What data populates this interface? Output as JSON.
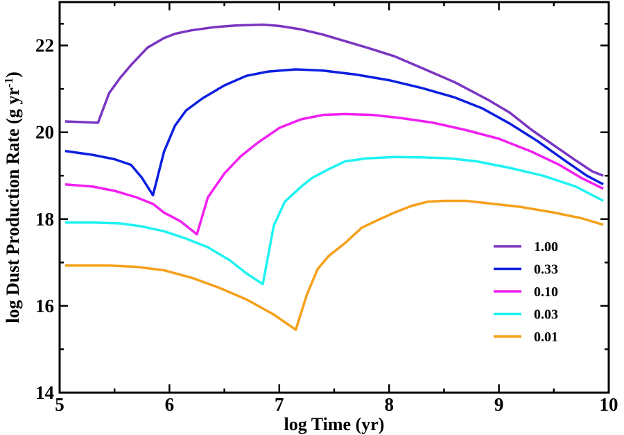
{
  "chart_data": {
    "type": "line",
    "xlabel": "log Time (yr)",
    "ylabel": {
      "main": "log Dust Production Rate (g yr",
      "sup": "-1",
      "tail": ")"
    },
    "xlim": [
      5,
      10
    ],
    "ylim": [
      14,
      23
    ],
    "xticks": [
      5,
      6,
      7,
      8,
      9,
      10
    ],
    "yticks": [
      14,
      16,
      18,
      20,
      22
    ],
    "legend_position": "lower-right",
    "grid": false,
    "series": [
      {
        "name": "1.00",
        "color": "#7a35c2",
        "points": [
          [
            5.05,
            20.25
          ],
          [
            5.35,
            20.22
          ],
          [
            5.45,
            20.9
          ],
          [
            5.55,
            21.25
          ],
          [
            5.65,
            21.55
          ],
          [
            5.8,
            21.95
          ],
          [
            5.95,
            22.17
          ],
          [
            6.05,
            22.27
          ],
          [
            6.2,
            22.35
          ],
          [
            6.4,
            22.42
          ],
          [
            6.6,
            22.46
          ],
          [
            6.85,
            22.48
          ],
          [
            7.0,
            22.45
          ],
          [
            7.2,
            22.37
          ],
          [
            7.4,
            22.25
          ],
          [
            7.6,
            22.1
          ],
          [
            7.8,
            21.95
          ],
          [
            8.05,
            21.75
          ],
          [
            8.3,
            21.48
          ],
          [
            8.6,
            21.15
          ],
          [
            8.9,
            20.75
          ],
          [
            9.1,
            20.45
          ],
          [
            9.3,
            20.05
          ],
          [
            9.5,
            19.7
          ],
          [
            9.7,
            19.35
          ],
          [
            9.85,
            19.1
          ],
          [
            9.95,
            19.0
          ]
        ]
      },
      {
        "name": "0.33",
        "color": "#0d1fe0",
        "points": [
          [
            5.05,
            19.57
          ],
          [
            5.3,
            19.48
          ],
          [
            5.5,
            19.38
          ],
          [
            5.65,
            19.25
          ],
          [
            5.75,
            18.95
          ],
          [
            5.85,
            18.55
          ],
          [
            5.95,
            19.55
          ],
          [
            6.05,
            20.15
          ],
          [
            6.15,
            20.5
          ],
          [
            6.3,
            20.78
          ],
          [
            6.5,
            21.08
          ],
          [
            6.7,
            21.3
          ],
          [
            6.9,
            21.4
          ],
          [
            7.15,
            21.45
          ],
          [
            7.4,
            21.42
          ],
          [
            7.7,
            21.33
          ],
          [
            8.0,
            21.2
          ],
          [
            8.3,
            21.02
          ],
          [
            8.6,
            20.8
          ],
          [
            8.85,
            20.55
          ],
          [
            9.1,
            20.2
          ],
          [
            9.35,
            19.8
          ],
          [
            9.6,
            19.35
          ],
          [
            9.8,
            19.0
          ],
          [
            9.95,
            18.8
          ]
        ]
      },
      {
        "name": "0.10",
        "color": "#f21ff2",
        "points": [
          [
            5.05,
            18.8
          ],
          [
            5.3,
            18.75
          ],
          [
            5.5,
            18.65
          ],
          [
            5.7,
            18.5
          ],
          [
            5.85,
            18.35
          ],
          [
            5.95,
            18.15
          ],
          [
            6.1,
            17.95
          ],
          [
            6.25,
            17.65
          ],
          [
            6.35,
            18.5
          ],
          [
            6.5,
            19.05
          ],
          [
            6.65,
            19.45
          ],
          [
            6.8,
            19.75
          ],
          [
            7.0,
            20.1
          ],
          [
            7.2,
            20.3
          ],
          [
            7.4,
            20.4
          ],
          [
            7.6,
            20.42
          ],
          [
            7.85,
            20.4
          ],
          [
            8.1,
            20.33
          ],
          [
            8.4,
            20.22
          ],
          [
            8.7,
            20.05
          ],
          [
            9.0,
            19.85
          ],
          [
            9.3,
            19.55
          ],
          [
            9.55,
            19.25
          ],
          [
            9.75,
            18.95
          ],
          [
            9.95,
            18.7
          ]
        ]
      },
      {
        "name": "0.03",
        "color": "#1ff2f2",
        "points": [
          [
            5.05,
            17.92
          ],
          [
            5.3,
            17.92
          ],
          [
            5.55,
            17.9
          ],
          [
            5.75,
            17.83
          ],
          [
            5.95,
            17.72
          ],
          [
            6.15,
            17.55
          ],
          [
            6.35,
            17.35
          ],
          [
            6.55,
            17.05
          ],
          [
            6.7,
            16.75
          ],
          [
            6.85,
            16.5
          ],
          [
            6.95,
            17.85
          ],
          [
            7.05,
            18.4
          ],
          [
            7.2,
            18.75
          ],
          [
            7.3,
            18.95
          ],
          [
            7.45,
            19.15
          ],
          [
            7.6,
            19.33
          ],
          [
            7.8,
            19.4
          ],
          [
            8.05,
            19.43
          ],
          [
            8.3,
            19.42
          ],
          [
            8.55,
            19.4
          ],
          [
            8.8,
            19.33
          ],
          [
            9.1,
            19.18
          ],
          [
            9.4,
            19.0
          ],
          [
            9.7,
            18.75
          ],
          [
            9.95,
            18.42
          ]
        ]
      },
      {
        "name": "0.01",
        "color": "#f5a01a",
        "points": [
          [
            5.05,
            16.93
          ],
          [
            5.45,
            16.93
          ],
          [
            5.7,
            16.9
          ],
          [
            5.95,
            16.82
          ],
          [
            6.2,
            16.65
          ],
          [
            6.45,
            16.42
          ],
          [
            6.7,
            16.15
          ],
          [
            6.95,
            15.8
          ],
          [
            7.15,
            15.45
          ],
          [
            7.25,
            16.25
          ],
          [
            7.35,
            16.85
          ],
          [
            7.45,
            17.15
          ],
          [
            7.6,
            17.45
          ],
          [
            7.75,
            17.8
          ],
          [
            7.9,
            17.98
          ],
          [
            8.05,
            18.15
          ],
          [
            8.2,
            18.3
          ],
          [
            8.35,
            18.4
          ],
          [
            8.5,
            18.42
          ],
          [
            8.7,
            18.42
          ],
          [
            8.95,
            18.35
          ],
          [
            9.2,
            18.28
          ],
          [
            9.5,
            18.15
          ],
          [
            9.75,
            18.02
          ],
          [
            9.95,
            17.87
          ]
        ]
      }
    ]
  }
}
